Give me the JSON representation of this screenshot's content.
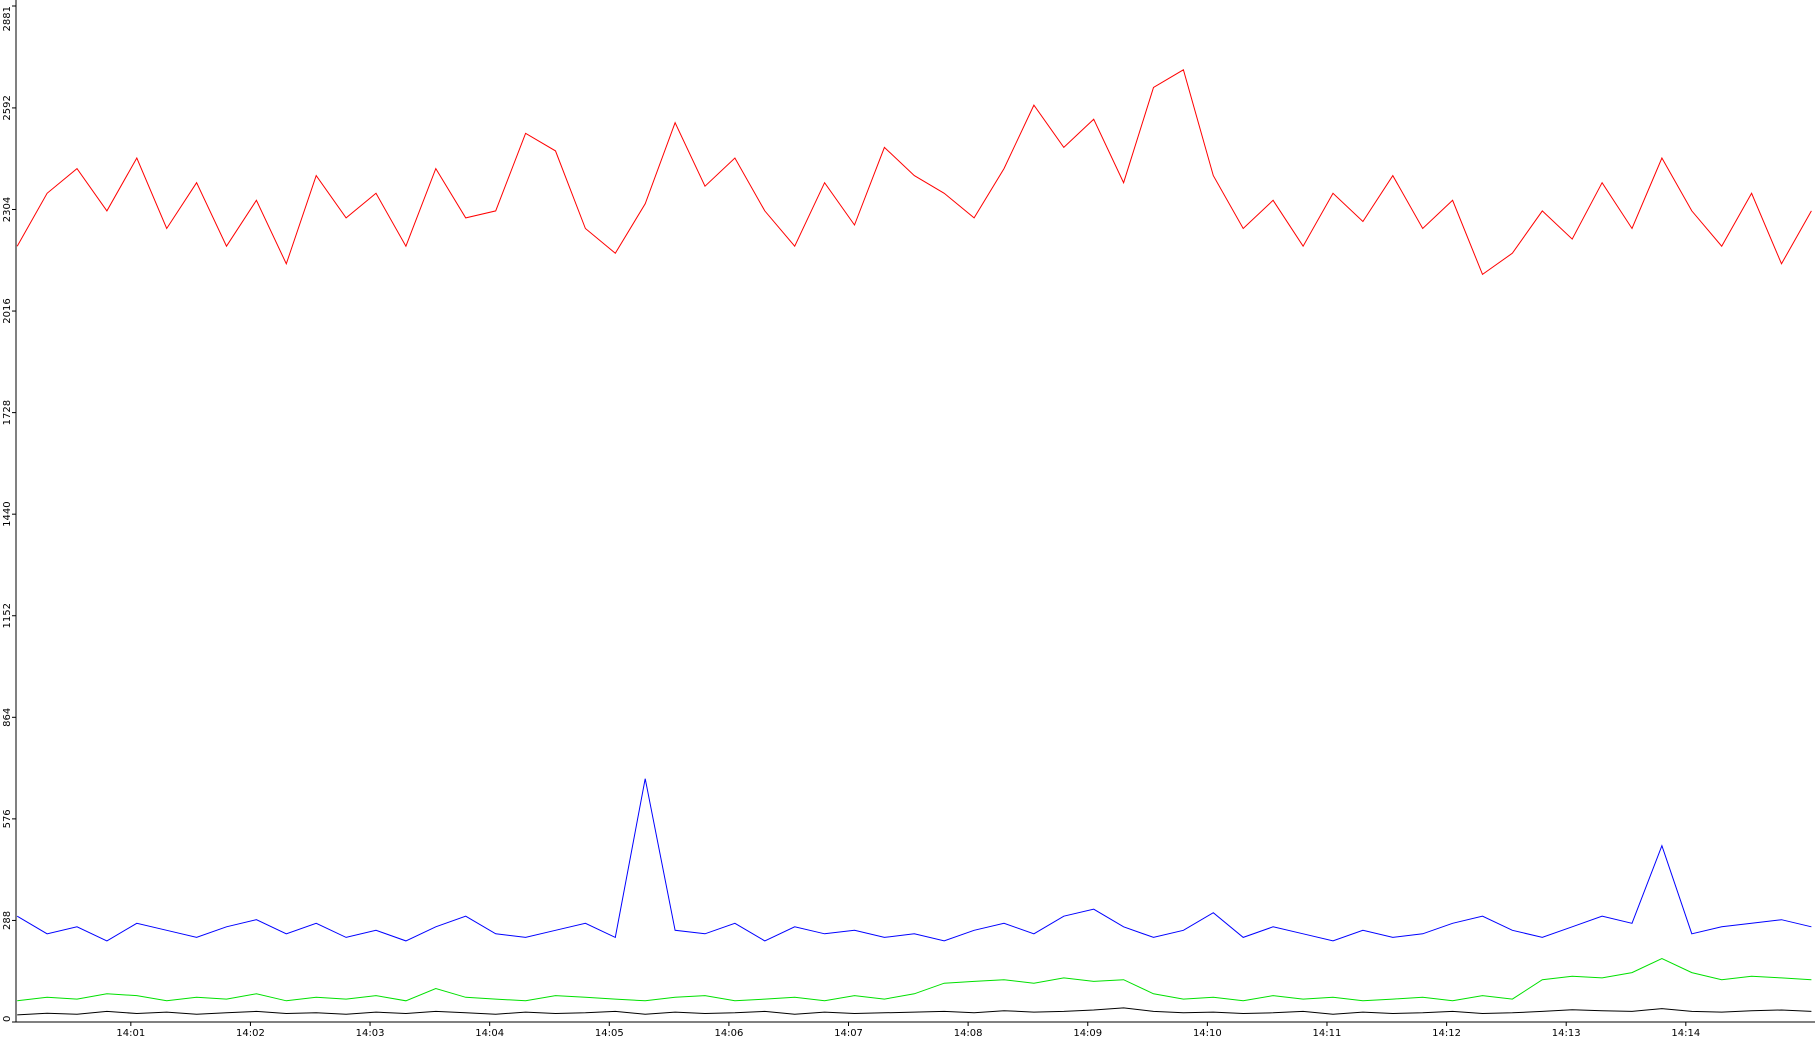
{
  "chart_data": {
    "type": "line",
    "x": [
      0.05,
      0.3,
      0.55,
      0.8,
      1.05,
      1.3,
      1.55,
      1.8,
      2.05,
      2.3,
      2.55,
      2.8,
      3.05,
      3.3,
      3.55,
      3.8,
      4.05,
      4.3,
      4.55,
      4.8,
      5.05,
      5.3,
      5.55,
      5.8,
      6.05,
      6.3,
      6.55,
      6.8,
      7.05,
      7.3,
      7.55,
      7.8,
      8.05,
      8.3,
      8.55,
      8.8,
      9.05,
      9.3,
      9.55,
      9.8,
      10.05,
      10.3,
      10.55,
      10.8,
      11.05,
      11.3,
      11.55,
      11.8,
      12.05,
      12.3,
      12.55,
      12.8,
      13.05,
      13.3,
      13.55,
      13.8,
      14.05,
      14.3,
      14.55,
      14.8,
      15.05
    ],
    "series": [
      {
        "color": "#ff0000",
        "values": [
          2200,
          2350,
          2420,
          2300,
          2450,
          2250,
          2380,
          2200,
          2330,
          2150,
          2400,
          2280,
          2350,
          2200,
          2420,
          2280,
          2300,
          2520,
          2470,
          2250,
          2180,
          2320,
          2550,
          2370,
          2450,
          2300,
          2200,
          2380,
          2260,
          2480,
          2400,
          2350,
          2280,
          2420,
          2600,
          2480,
          2560,
          2380,
          2650,
          2700,
          2400,
          2250,
          2330,
          2200,
          2350,
          2270,
          2400,
          2250,
          2330,
          2120,
          2180,
          2300,
          2220,
          2380,
          2250,
          2450,
          2300,
          2200,
          2350,
          2150,
          2300
        ]
      },
      {
        "color": "#0000ff",
        "values": [
          300,
          250,
          270,
          230,
          280,
          260,
          240,
          270,
          290,
          250,
          280,
          240,
          260,
          230,
          270,
          300,
          250,
          240,
          260,
          280,
          240,
          690,
          260,
          250,
          280,
          230,
          270,
          250,
          260,
          240,
          250,
          230,
          260,
          280,
          250,
          300,
          320,
          270,
          240,
          260,
          310,
          240,
          270,
          250,
          230,
          260,
          240,
          250,
          280,
          300,
          260,
          240,
          270,
          300,
          280,
          500,
          250,
          270,
          280,
          290,
          270
        ]
      },
      {
        "color": "#00e000",
        "values": [
          60,
          70,
          65,
          80,
          75,
          60,
          70,
          65,
          80,
          60,
          70,
          65,
          75,
          60,
          95,
          70,
          65,
          60,
          75,
          70,
          65,
          60,
          70,
          75,
          60,
          65,
          70,
          60,
          75,
          65,
          80,
          110,
          115,
          120,
          110,
          125,
          115,
          120,
          80,
          65,
          70,
          60,
          75,
          65,
          70,
          60,
          65,
          70,
          60,
          75,
          65,
          120,
          130,
          125,
          140,
          180,
          140,
          120,
          130,
          125,
          120
        ]
      },
      {
        "color": "#000000",
        "values": [
          20,
          25,
          22,
          30,
          24,
          28,
          22,
          26,
          30,
          24,
          26,
          22,
          28,
          24,
          30,
          26,
          22,
          28,
          24,
          26,
          30,
          22,
          28,
          24,
          26,
          30,
          22,
          28,
          24,
          26,
          28,
          30,
          26,
          32,
          28,
          30,
          34,
          40,
          30,
          26,
          28,
          24,
          26,
          30,
          22,
          28,
          24,
          26,
          30,
          24,
          26,
          30,
          35,
          32,
          30,
          38,
          30,
          28,
          32,
          34,
          30
        ]
      }
    ],
    "xlim": [
      0.04,
      15.08
    ],
    "ylim": [
      0,
      2881
    ],
    "xticks": [
      {
        "value": 1,
        "label": "14:01"
      },
      {
        "value": 2,
        "label": "14:02"
      },
      {
        "value": 3,
        "label": "14:03"
      },
      {
        "value": 4,
        "label": "14:04"
      },
      {
        "value": 5,
        "label": "14:05"
      },
      {
        "value": 6,
        "label": "14:06"
      },
      {
        "value": 7,
        "label": "14:07"
      },
      {
        "value": 8,
        "label": "14:08"
      },
      {
        "value": 9,
        "label": "14:09"
      },
      {
        "value": 10,
        "label": "14:10"
      },
      {
        "value": 11,
        "label": "14:11"
      },
      {
        "value": 12,
        "label": "14:12"
      },
      {
        "value": 13,
        "label": "14:13"
      },
      {
        "value": 14,
        "label": "14:14"
      }
    ],
    "yticks": [
      0,
      288,
      576,
      864,
      1152,
      1440,
      1728,
      2016,
      2304,
      2592,
      2881
    ]
  }
}
